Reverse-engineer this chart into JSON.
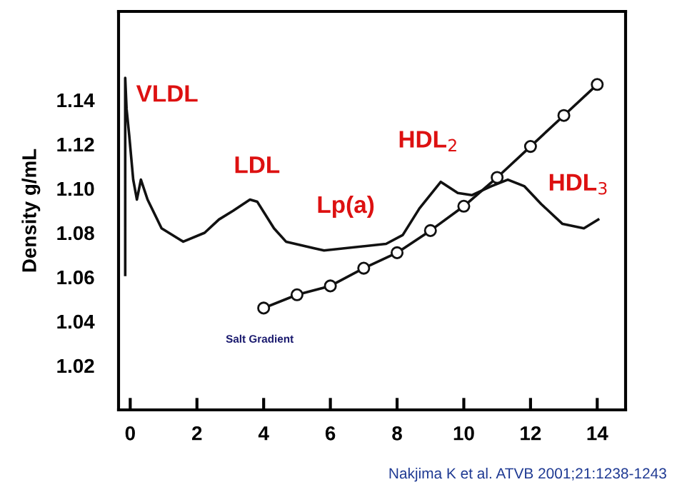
{
  "chart_data": {
    "type": "line",
    "ylabel": "Density g/mL",
    "xlim": [
      -0.35,
      14.85
    ],
    "ylim": [
      1.0,
      1.18
    ],
    "xticks": [
      0,
      2,
      4,
      6,
      8,
      10,
      12,
      14
    ],
    "yticks": [
      1.02,
      1.04,
      1.06,
      1.08,
      {
        "value": 1.1,
        "label": "1.10"
      },
      1.12,
      1.14
    ],
    "grid": false,
    "legend": false,
    "series": [
      {
        "color": "#111111",
        "marker": "none",
        "x": [
          -0.15,
          -0.15,
          -0.11,
          -0.03,
          0.09,
          0.2,
          0.32,
          0.52,
          0.94,
          1.59,
          2.23,
          2.66,
          3.09,
          3.59,
          3.81,
          4.31,
          4.67,
          5.52,
          5.81,
          7.67,
          8.17,
          8.67,
          9.31,
          9.82,
          10.24,
          10.82,
          11.32,
          11.82,
          12.32,
          12.96,
          13.6,
          14.03
        ],
        "values": [
          1.061,
          1.15,
          1.136,
          1.124,
          1.104,
          1.095,
          1.104,
          1.095,
          1.082,
          1.076,
          1.08,
          1.086,
          1.09,
          1.095,
          1.094,
          1.082,
          1.076,
          1.073,
          1.072,
          1.075,
          1.079,
          1.091,
          1.103,
          1.098,
          1.097,
          1.101,
          1.104,
          1.101,
          1.093,
          1.084,
          1.082,
          1.086
        ]
      },
      {
        "name": "Salt Gradient",
        "color": "#111111",
        "marker": "circle",
        "x": [
          4,
          5,
          6,
          7,
          8,
          9,
          10,
          11,
          12,
          13,
          14
        ],
        "values": [
          1.046,
          1.052,
          1.056,
          1.064,
          1.071,
          1.081,
          1.092,
          1.105,
          1.119,
          1.133,
          1.147
        ]
      }
    ],
    "annotations": [
      "VLDL",
      "LDL",
      "Lp(a)",
      "HDL$_{2}$",
      "HDL$_{3}$",
      "Nakjima K et al. ATVB 2001;21:1238-1243"
    ]
  }
}
